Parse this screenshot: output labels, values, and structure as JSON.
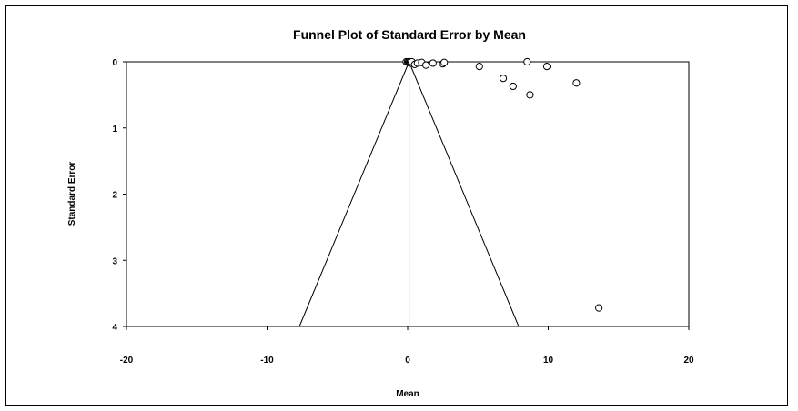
{
  "chart_data": {
    "type": "scatter",
    "title": "Funnel Plot of Standard Error by Mean",
    "xlabel": "Mean",
    "ylabel": "Standard Error",
    "xlim": [
      -20,
      20
    ],
    "ylim": [
      0,
      4
    ],
    "y_inverted": true,
    "x_ticks": [
      -20,
      -10,
      0,
      10,
      20
    ],
    "y_ticks": [
      0,
      1,
      2,
      3,
      4
    ],
    "grid": false,
    "legend": "none",
    "funnel": {
      "center": 0.1,
      "apex_se": 0,
      "base_se": 4,
      "base_left": -7.7,
      "base_right": 7.9
    },
    "points": [
      {
        "x": -0.1,
        "y": 0.0
      },
      {
        "x": 0.0,
        "y": 0.0
      },
      {
        "x": 0.05,
        "y": 0.01
      },
      {
        "x": 0.1,
        "y": 0.0
      },
      {
        "x": 0.15,
        "y": 0.01
      },
      {
        "x": 0.2,
        "y": 0.0
      },
      {
        "x": 0.25,
        "y": 0.02
      },
      {
        "x": 0.3,
        "y": 0.0
      },
      {
        "x": 0.5,
        "y": 0.04
      },
      {
        "x": 0.7,
        "y": 0.02
      },
      {
        "x": 1.0,
        "y": 0.01
      },
      {
        "x": 1.3,
        "y": 0.05
      },
      {
        "x": 1.8,
        "y": 0.02
      },
      {
        "x": 2.5,
        "y": 0.03
      },
      {
        "x": 2.6,
        "y": 0.01
      },
      {
        "x": 5.1,
        "y": 0.07
      },
      {
        "x": 6.8,
        "y": 0.25
      },
      {
        "x": 7.5,
        "y": 0.37
      },
      {
        "x": 8.5,
        "y": 0.0
      },
      {
        "x": 8.7,
        "y": 0.5
      },
      {
        "x": 9.9,
        "y": 0.07
      },
      {
        "x": 12.0,
        "y": 0.32
      },
      {
        "x": 13.6,
        "y": 3.72
      }
    ]
  }
}
